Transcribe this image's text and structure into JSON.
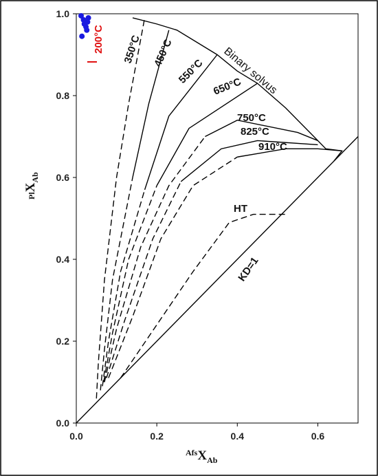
{
  "chart_data": {
    "type": "line",
    "xlabel": {
      "prefix": "Afs",
      "main": "X",
      "sub": "Ab"
    },
    "ylabel": {
      "prefix": "Pl",
      "main": "X",
      "sub": "Ab"
    },
    "xlim": [
      0,
      0.7
    ],
    "ylim": [
      0,
      1.0
    ],
    "x_ticks": [
      "0.0",
      "0.2",
      "0.4",
      "0.6"
    ],
    "y_ticks": [
      "0.0",
      "0.2",
      "0.4",
      "0.6",
      "0.8",
      "1.0"
    ],
    "grid": false,
    "series": [
      {
        "name": "350°C",
        "style": "dashed",
        "points": [
          [
            0.05,
            0.06
          ],
          [
            0.055,
            0.15
          ],
          [
            0.07,
            0.35
          ],
          [
            0.1,
            0.6
          ],
          [
            0.13,
            0.78
          ],
          [
            0.17,
            0.99
          ]
        ]
      },
      {
        "name": "450°C",
        "style": "mixed",
        "points": [
          [
            0.06,
            0.08
          ],
          [
            0.07,
            0.18
          ],
          [
            0.09,
            0.35
          ],
          [
            0.14,
            0.6
          ],
          [
            0.18,
            0.78
          ],
          [
            0.23,
            0.96
          ]
        ]
      },
      {
        "name": "550°C",
        "style": "mixed",
        "points": [
          [
            0.065,
            0.09
          ],
          [
            0.08,
            0.2
          ],
          [
            0.11,
            0.37
          ],
          [
            0.17,
            0.57
          ],
          [
            0.23,
            0.75
          ],
          [
            0.35,
            0.9
          ]
        ]
      },
      {
        "name": "650°C",
        "style": "mixed",
        "points": [
          [
            0.068,
            0.1
          ],
          [
            0.09,
            0.22
          ],
          [
            0.13,
            0.4
          ],
          [
            0.2,
            0.58
          ],
          [
            0.28,
            0.72
          ],
          [
            0.45,
            0.83
          ]
        ]
      },
      {
        "name": "750°C",
        "style": "mixed",
        "points": [
          [
            0.07,
            0.1
          ],
          [
            0.1,
            0.23
          ],
          [
            0.16,
            0.43
          ],
          [
            0.23,
            0.58
          ],
          [
            0.32,
            0.7
          ],
          [
            0.4,
            0.74
          ],
          [
            0.55,
            0.71
          ],
          [
            0.6,
            0.69
          ]
        ]
      },
      {
        "name": "825°C",
        "style": "mixed",
        "points": [
          [
            0.075,
            0.11
          ],
          [
            0.12,
            0.25
          ],
          [
            0.19,
            0.45
          ],
          [
            0.26,
            0.59
          ],
          [
            0.36,
            0.67
          ],
          [
            0.45,
            0.69
          ],
          [
            0.6,
            0.68
          ]
        ]
      },
      {
        "name": "910°C",
        "style": "mixed",
        "points": [
          [
            0.08,
            0.11
          ],
          [
            0.14,
            0.26
          ],
          [
            0.21,
            0.45
          ],
          [
            0.29,
            0.58
          ],
          [
            0.4,
            0.65
          ],
          [
            0.52,
            0.67
          ],
          [
            0.6,
            0.67
          ],
          [
            0.66,
            0.665
          ]
        ]
      },
      {
        "name": "HT",
        "style": "dashed",
        "points": [
          [
            0.11,
            0.11
          ],
          [
            0.2,
            0.24
          ],
          [
            0.29,
            0.37
          ],
          [
            0.38,
            0.49
          ],
          [
            0.44,
            0.51
          ],
          [
            0.52,
            0.51
          ]
        ]
      },
      {
        "name": "Binary solvus",
        "style": "solid",
        "points": [
          [
            0.14,
            0.99
          ],
          [
            0.2,
            0.975
          ],
          [
            0.25,
            0.96
          ],
          [
            0.3,
            0.93
          ],
          [
            0.35,
            0.9
          ],
          [
            0.4,
            0.86
          ],
          [
            0.45,
            0.83
          ],
          [
            0.52,
            0.77
          ],
          [
            0.58,
            0.71
          ],
          [
            0.62,
            0.67
          ],
          [
            0.66,
            0.665
          ],
          [
            0.64,
            0.64
          ]
        ]
      },
      {
        "name": "KD=1",
        "style": "solid",
        "points": [
          [
            0.0,
            0.0
          ],
          [
            0.7,
            0.7
          ]
        ]
      }
    ],
    "sample_points": [
      [
        0.012,
        0.995
      ],
      [
        0.018,
        0.985
      ],
      [
        0.02,
        0.975
      ],
      [
        0.024,
        0.968
      ],
      [
        0.028,
        0.98
      ],
      [
        0.026,
        0.96
      ],
      [
        0.014,
        0.945
      ],
      [
        0.03,
        0.99
      ]
    ],
    "sample_color": "#1a1ae0",
    "labels": {
      "t350": "350°C",
      "t450": "450°C",
      "t550": "550°C",
      "t650": "650°C",
      "t750": "750°C",
      "t825": "825°C",
      "t910": "910°C",
      "solvus": "Binary solvus",
      "ht": "HT",
      "kd": "KD=1",
      "t200": "200°C"
    },
    "highlight_color": "#e01010"
  }
}
